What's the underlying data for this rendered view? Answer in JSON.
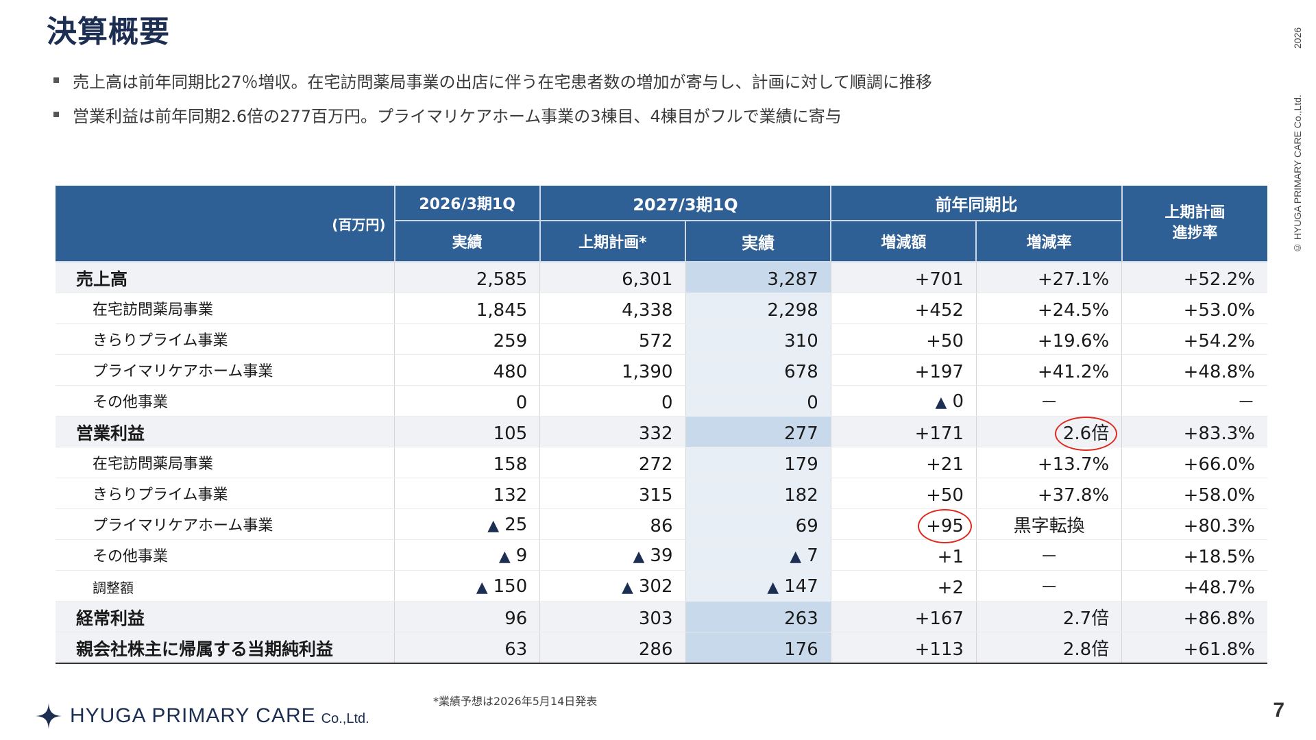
{
  "title": "決算概要",
  "bullets": [
    "売上高は前年同期比27％増収。在宅訪問薬局事業の出店に伴う在宅患者数の増加が寄与し、計画に対して順調に推移",
    "営業利益は前年同期2.6倍の277百万円。プライマリケアホーム事業の3棟目、4棟目がフルで業績に寄与"
  ],
  "copyright": {
    "text": "© HYUGA PRIMARY CARE Co.,Ltd.",
    "year": "2026"
  },
  "table": {
    "unit": "(百万円)",
    "header_top": {
      "prev_period": "2026/3期1Q",
      "curr_period": "2027/3期1Q",
      "yoy": "前年同期比",
      "progress": "上期計画\n進捗率"
    },
    "header_sub": {
      "prev_actual": "実績",
      "plan": "上期計画*",
      "curr_actual": "実績",
      "change": "増減額",
      "rate": "増減率"
    },
    "rows": [
      {
        "label": "売上高",
        "prev": "2,585",
        "plan": "6,301",
        "actual": "3,287",
        "change": "+701",
        "rate": "+27.1%",
        "progress": "+52.2%"
      },
      {
        "label": "在宅訪問薬局事業",
        "prev": "1,845",
        "plan": "4,338",
        "actual": "2,298",
        "change": "+452",
        "rate": "+24.5%",
        "progress": "+53.0%"
      },
      {
        "label": "きらりプライム事業",
        "prev": "259",
        "plan": "572",
        "actual": "310",
        "change": "+50",
        "rate": "+19.6%",
        "progress": "+54.2%"
      },
      {
        "label": "プライマリケアホーム事業",
        "prev": "480",
        "plan": "1,390",
        "actual": "678",
        "change": "+197",
        "rate": "+41.2%",
        "progress": "+48.8%"
      },
      {
        "label": "その他事業",
        "prev": "0",
        "plan": "0",
        "actual": "0",
        "change": "0",
        "rate": "－",
        "progress": "－"
      },
      {
        "label": "営業利益",
        "prev": "105",
        "plan": "332",
        "actual": "277",
        "change": "+171",
        "rate": "2.6倍",
        "progress": "+83.3%"
      },
      {
        "label": "在宅訪問薬局事業",
        "prev": "158",
        "plan": "272",
        "actual": "179",
        "change": "+21",
        "rate": "+13.7%",
        "progress": "+66.0%"
      },
      {
        "label": "きらりプライム事業",
        "prev": "132",
        "plan": "315",
        "actual": "182",
        "change": "+50",
        "rate": "+37.8%",
        "progress": "+58.0%"
      },
      {
        "label": "プライマリケアホーム事業",
        "prev": "25",
        "plan": "86",
        "actual": "69",
        "change": "+95",
        "rate": "黒字転換",
        "progress": "+80.3%"
      },
      {
        "label": "その他事業",
        "prev": "9",
        "plan": "39",
        "actual": "7",
        "change": "+1",
        "rate": "－",
        "progress": "+18.5%"
      },
      {
        "label": "調整額",
        "prev": "150",
        "plan": "302",
        "actual": "147",
        "change": "+2",
        "rate": "－",
        "progress": "+48.7%"
      },
      {
        "label": "経常利益",
        "prev": "96",
        "plan": "303",
        "actual": "263",
        "change": "+167",
        "rate": "2.7倍",
        "progress": "+86.8%"
      },
      {
        "label": "親会社株主に帰属する当期純利益",
        "prev": "63",
        "plan": "286",
        "actual": "176",
        "change": "+113",
        "rate": "2.8倍",
        "progress": "+61.8%"
      }
    ],
    "negative_marker": "▲"
  },
  "footnote": "*業績予想は2026年5月14日発表",
  "logo": {
    "brand": "HYUGA PRIMARY CARE",
    "suffix": "Co.,Ltd."
  },
  "page_number": "7",
  "colors": {
    "header": "#2e5f95",
    "title": "#1c2e52",
    "highlight": "#c8d9ec",
    "circle": "#e0281e"
  }
}
